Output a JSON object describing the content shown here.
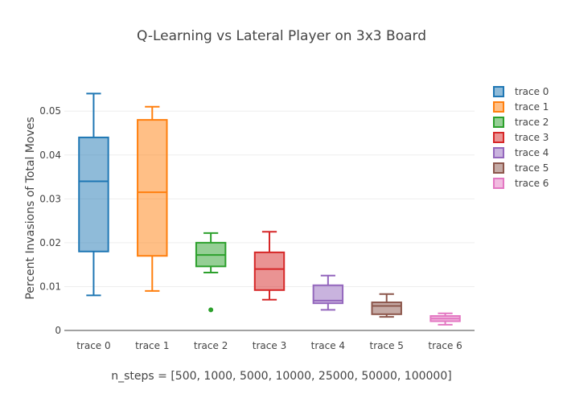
{
  "chart_data": {
    "type": "box",
    "title": "Q-Learning vs Lateral Player on 3x3 Board",
    "xlabel": "n_steps = [500, 1000, 5000, 10000, 25000, 50000, 100000]",
    "ylabel": "Percent Invasions of Total Moves",
    "ylim": [
      0,
      0.057
    ],
    "yticks": [
      0,
      0.01,
      0.02,
      0.03,
      0.04,
      0.05
    ],
    "ytick_labels": [
      "0",
      "0.01",
      "0.02",
      "0.03",
      "0.04",
      "0.05"
    ],
    "grid": true,
    "legend_position": "right",
    "series": [
      {
        "name": "trace 0",
        "color": "#1f77b4",
        "min": 0.008,
        "q1": 0.018,
        "median": 0.034,
        "q3": 0.044,
        "max": 0.054,
        "outliers": []
      },
      {
        "name": "trace 1",
        "color": "#ff7f0e",
        "min": 0.009,
        "q1": 0.017,
        "median": 0.0315,
        "q3": 0.048,
        "max": 0.051,
        "outliers": []
      },
      {
        "name": "trace 2",
        "color": "#2ca02c",
        "min": 0.0132,
        "q1": 0.0146,
        "median": 0.0172,
        "q3": 0.02,
        "max": 0.0222,
        "outliers": [
          0.0047
        ]
      },
      {
        "name": "trace 3",
        "color": "#d62728",
        "min": 0.007,
        "q1": 0.0092,
        "median": 0.014,
        "q3": 0.0178,
        "max": 0.0225,
        "outliers": []
      },
      {
        "name": "trace 4",
        "color": "#9467bd",
        "min": 0.0047,
        "q1": 0.0062,
        "median": 0.0068,
        "q3": 0.0103,
        "max": 0.0125,
        "outliers": []
      },
      {
        "name": "trace 5",
        "color": "#8c564b",
        "min": 0.0031,
        "q1": 0.0037,
        "median": 0.0056,
        "q3": 0.0064,
        "max": 0.0083,
        "outliers": []
      },
      {
        "name": "trace 6",
        "color": "#e377c2",
        "min": 0.0013,
        "q1": 0.0021,
        "median": 0.0027,
        "q3": 0.0033,
        "max": 0.0039,
        "outliers": []
      }
    ]
  }
}
